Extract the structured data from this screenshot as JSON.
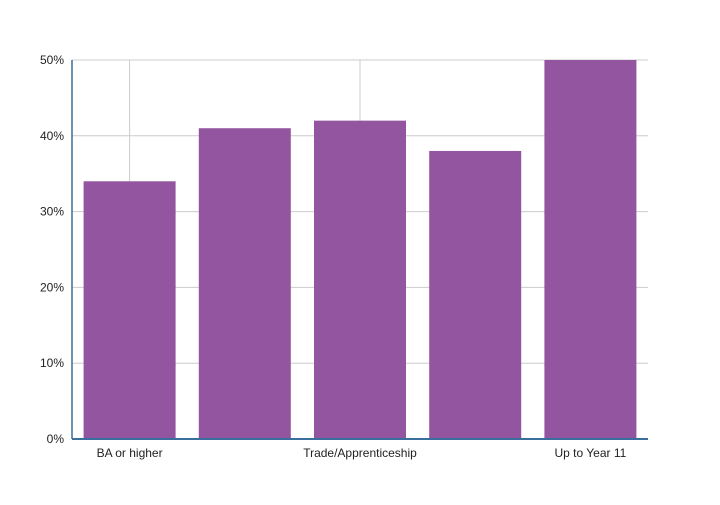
{
  "chart_data": {
    "type": "bar",
    "title": "",
    "xlabel": "",
    "ylabel": "",
    "categories": [
      "BA or higher",
      "",
      "Trade/Apprenticeship",
      "",
      "Up to Year 11"
    ],
    "values": [
      34,
      41,
      42,
      38,
      50
    ],
    "ylim": [
      0,
      50
    ],
    "yticks": [
      0,
      10,
      20,
      30,
      40,
      50
    ],
    "ytick_labels": [
      "0%",
      "10%",
      "20%",
      "30%",
      "40%",
      "50%"
    ],
    "grid": true,
    "bar_color": "#9354a0",
    "axis_color": "#3a6e9c",
    "grid_color": "#cccccc"
  }
}
